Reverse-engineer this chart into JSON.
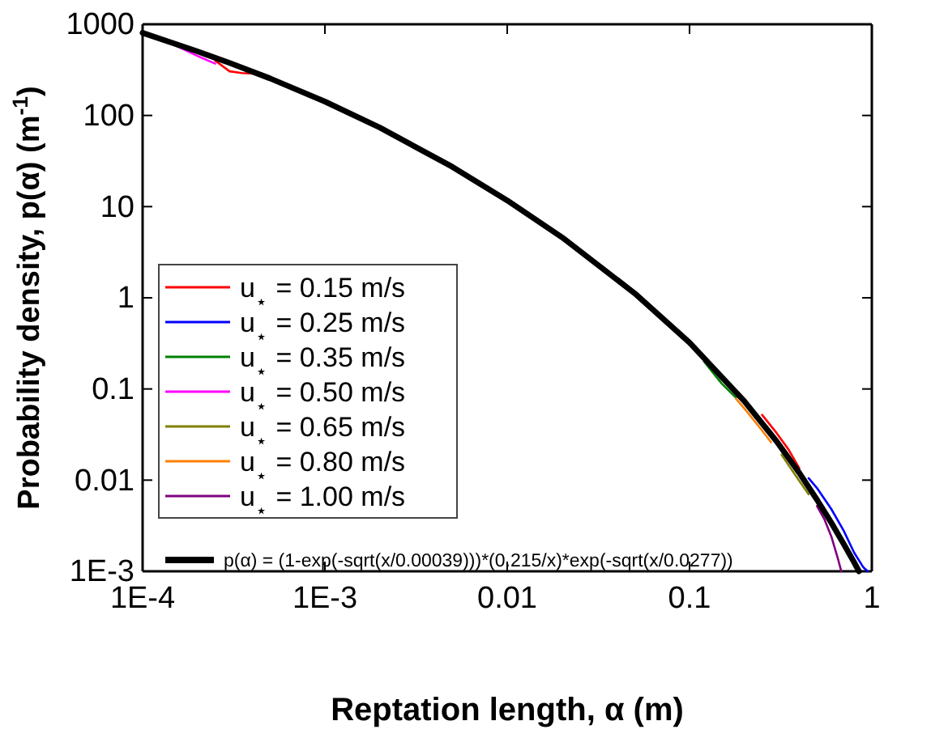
{
  "chart_data": {
    "type": "line",
    "xlabel": "Reptation length, α (m)",
    "ylabel": "Probability density, p(α) (m$^{-1}$)",
    "log": "xy",
    "xlim": [
      0.0001,
      1
    ],
    "ylim": [
      0.001,
      1000
    ],
    "xticks": [
      {
        "value": 0.0001,
        "label": "1E-4"
      },
      {
        "value": 0.001,
        "label": "1E-3"
      },
      0.01,
      0.1,
      1
    ],
    "yticks": [
      {
        "value": 0.001,
        "label": "1E-3"
      },
      0.01,
      0.1,
      1,
      10,
      100,
      1000
    ],
    "legend": "bottom left",
    "grid": false,
    "line_style": "solid",
    "marker": "none",
    "series": [
      {
        "name": "u$_{⋆}$ = 0.15 m/s",
        "color": "#ff0000",
        "x": [
          0.00025,
          0.0003,
          0.00035,
          0.0004,
          null,
          0.25,
          0.3,
          0.35,
          0.4
        ],
        "values": [
          400,
          305,
          292,
          288,
          null,
          0.052,
          0.033,
          0.0215,
          0.0135
        ]
      },
      {
        "name": "u$_{⋆}$ = 0.25 m/s",
        "color": "#0000ff",
        "x": [
          0.45,
          0.5,
          0.6,
          0.7,
          0.8,
          0.9,
          0.95
        ],
        "values": [
          0.0105,
          0.0082,
          0.0048,
          0.0028,
          0.0016,
          0.0011,
          0.001
        ]
      },
      {
        "name": "u$_{⋆}$ = 0.35 m/s",
        "color": "#008000",
        "x": [
          0.12,
          0.15,
          0.18
        ],
        "values": [
          0.2,
          0.115,
          0.08
        ]
      },
      {
        "name": "u$_{⋆}$ = 0.50 m/s",
        "color": "#ff00ff",
        "x": [
          0.00015,
          0.0002,
          0.00025
        ],
        "values": [
          590,
          450,
          370
        ]
      },
      {
        "name": "u$_{⋆}$ = 0.65 m/s",
        "color": "#808000",
        "x": [
          0.32,
          0.35,
          0.4,
          0.45
        ],
        "values": [
          0.019,
          0.0145,
          0.0098,
          0.007
        ]
      },
      {
        "name": "u$_{⋆}$ = 0.80 m/s",
        "color": "#ff8000",
        "x": [
          0.18,
          0.2,
          0.25,
          0.28
        ],
        "values": [
          0.078,
          0.061,
          0.035,
          0.026
        ]
      },
      {
        "name": "u$_{⋆}$ = 1.00 m/s",
        "color": "#800080",
        "x": [
          0.5,
          0.55,
          0.6,
          0.65,
          0.68
        ],
        "values": [
          0.0052,
          0.0037,
          0.0024,
          0.0014,
          0.001
        ]
      },
      {
        "name": "p(α) = (1-exp(-sqrt(x/0.00039)))*(0.215/x)*exp(-sqrt(x/0.0277))",
        "color": "#000000",
        "x": [
          0.0001,
          0.0002,
          0.0003,
          0.0005,
          0.001,
          0.002,
          0.005,
          0.01,
          0.02,
          0.05,
          0.1,
          0.2,
          0.3,
          0.4,
          0.5,
          0.6,
          0.7,
          0.8,
          0.85
        ],
        "values": [
          804,
          504,
          377,
          255,
          142,
          73.6,
          27.3,
          11.7,
          4.6,
          1.12,
          0.322,
          0.0732,
          0.0267,
          0.012,
          0.0061,
          0.0034,
          0.002,
          0.00125,
          0.001
        ]
      }
    ]
  }
}
